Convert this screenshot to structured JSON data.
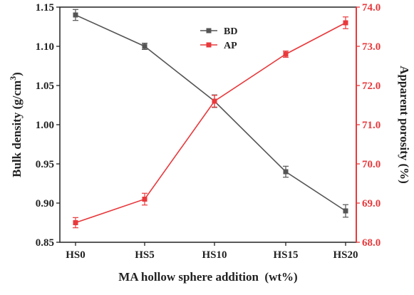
{
  "chart_data": {
    "type": "line",
    "categories": [
      "HS0",
      "HS5",
      "HS10",
      "HS15",
      "HS20"
    ],
    "xlabel": "MA hollow sphere addition  (wt%)",
    "ylabel_left": {
      "text": "Bulk density (g/cm",
      "sup": "3",
      "tail": ")"
    },
    "ylabel_right": "Apparent porosity (%)",
    "y_left": {
      "lim": [
        0.85,
        1.15
      ],
      "ticks": [
        0.85,
        0.9,
        0.95,
        1.0,
        1.05,
        1.1,
        1.15
      ],
      "tick_labels": [
        "0.85",
        "0.90",
        "0.95",
        "1.00",
        "1.05",
        "1.10",
        "1.15"
      ]
    },
    "y_right": {
      "lim": [
        68.0,
        74.0
      ],
      "ticks": [
        68.0,
        69.0,
        70.0,
        71.0,
        72.0,
        73.0,
        74.0
      ],
      "tick_labels": [
        "68.0",
        "69.0",
        "70.0",
        "71.0",
        "72.0",
        "73.0",
        "74.0"
      ]
    },
    "series": [
      {
        "name": "BD",
        "axis": "left",
        "color": "#555555",
        "marker": "square",
        "values": [
          1.14,
          1.1,
          1.03,
          0.94,
          0.89
        ],
        "errors": [
          0.007,
          0.004,
          0.008,
          0.007,
          0.008
        ]
      },
      {
        "name": "AP",
        "axis": "right",
        "color": "#e8393c",
        "marker": "square",
        "values": [
          68.5,
          69.1,
          71.6,
          72.8,
          73.6
        ],
        "errors": [
          0.13,
          0.15,
          0.15,
          0.08,
          0.15
        ]
      }
    ],
    "legend": "top-center",
    "grid": false
  }
}
